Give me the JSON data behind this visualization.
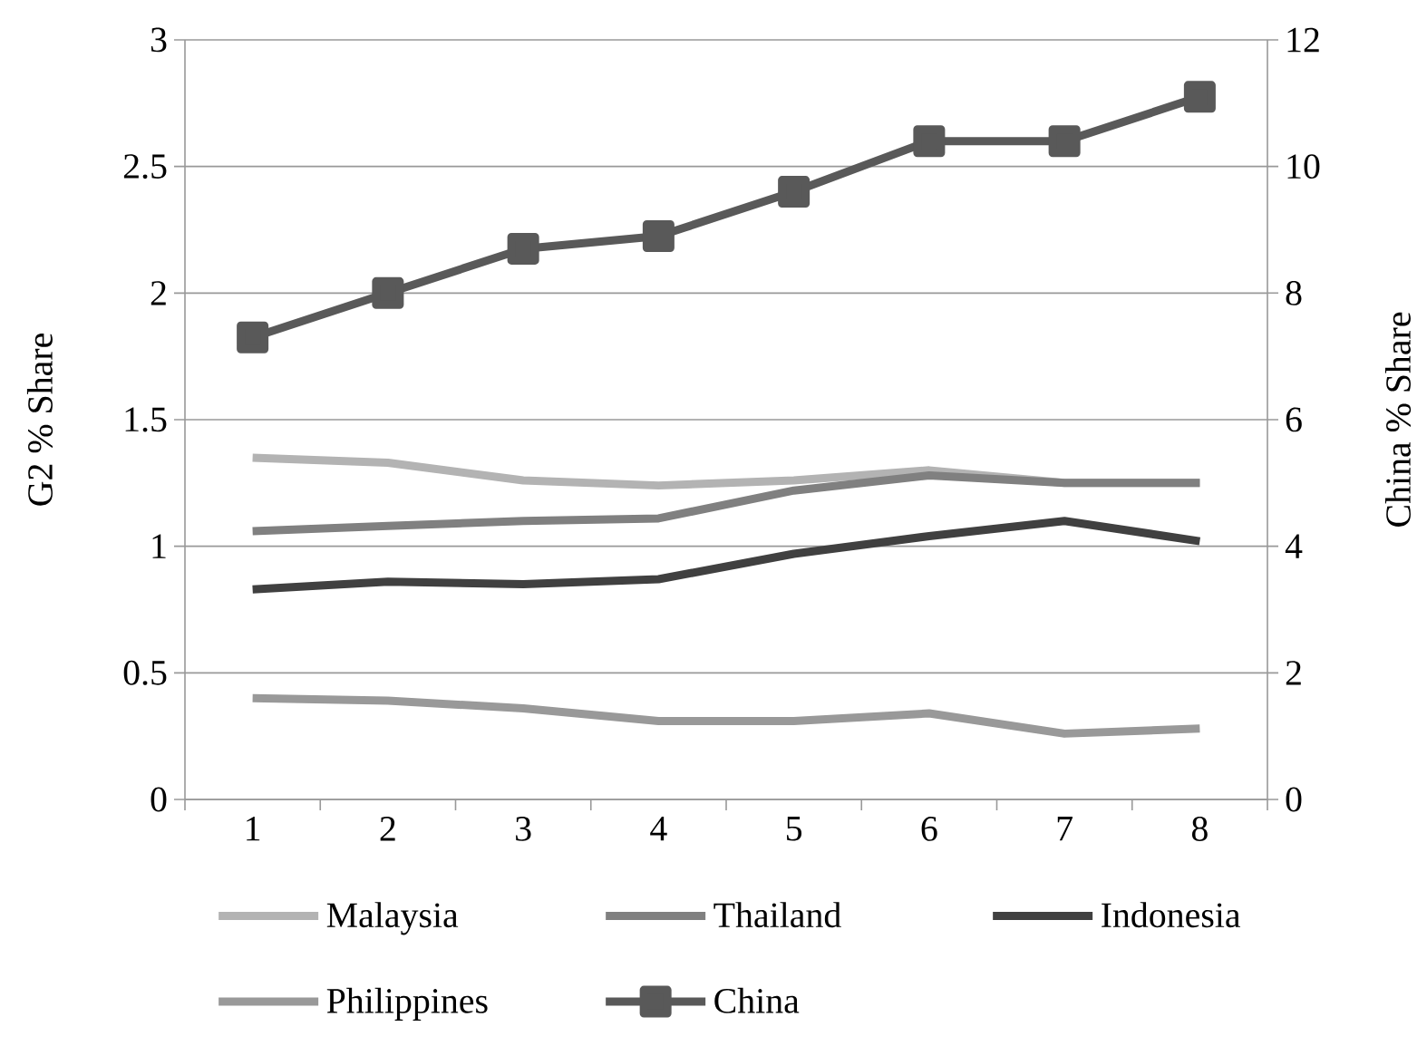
{
  "chart_data": {
    "type": "line",
    "categories": [
      "1",
      "2",
      "3",
      "4",
      "5",
      "6",
      "7",
      "8"
    ],
    "ylabel": "G2  % Share",
    "y2label": "China  % Share",
    "ylim": [
      0,
      3
    ],
    "yticks": [
      0,
      0.5,
      1,
      1.5,
      2,
      2.5,
      3
    ],
    "y2lim": [
      0,
      12
    ],
    "y2ticks": [
      0,
      2,
      4,
      6,
      8,
      10,
      12
    ],
    "grid": "y",
    "legend": "bottom",
    "line_style": "solid",
    "marker": "none",
    "series": [
      {
        "name": "Malaysia",
        "color": "#b3b3b3",
        "values": [
          1.35,
          1.33,
          1.26,
          1.24,
          1.26,
          1.3,
          1.25,
          1.25
        ]
      },
      {
        "name": "Thailand",
        "color": "#808080",
        "values": [
          1.06,
          1.08,
          1.1,
          1.11,
          1.22,
          1.28,
          1.25,
          1.25
        ]
      },
      {
        "name": "Indonesia",
        "color": "#404040",
        "values": [
          0.83,
          0.86,
          0.85,
          0.87,
          0.97,
          1.04,
          1.1,
          1.02
        ]
      },
      {
        "name": "Philippines",
        "color": "#999999",
        "values": [
          0.4,
          0.39,
          0.36,
          0.31,
          0.31,
          0.34,
          0.26,
          0.28
        ]
      },
      {
        "name": "China",
        "color": "#595959",
        "axis": "y2",
        "marker": "square",
        "values": [
          7.3,
          8.0,
          8.7,
          8.9,
          9.6,
          10.4,
          10.4,
          11.1
        ]
      }
    ]
  }
}
